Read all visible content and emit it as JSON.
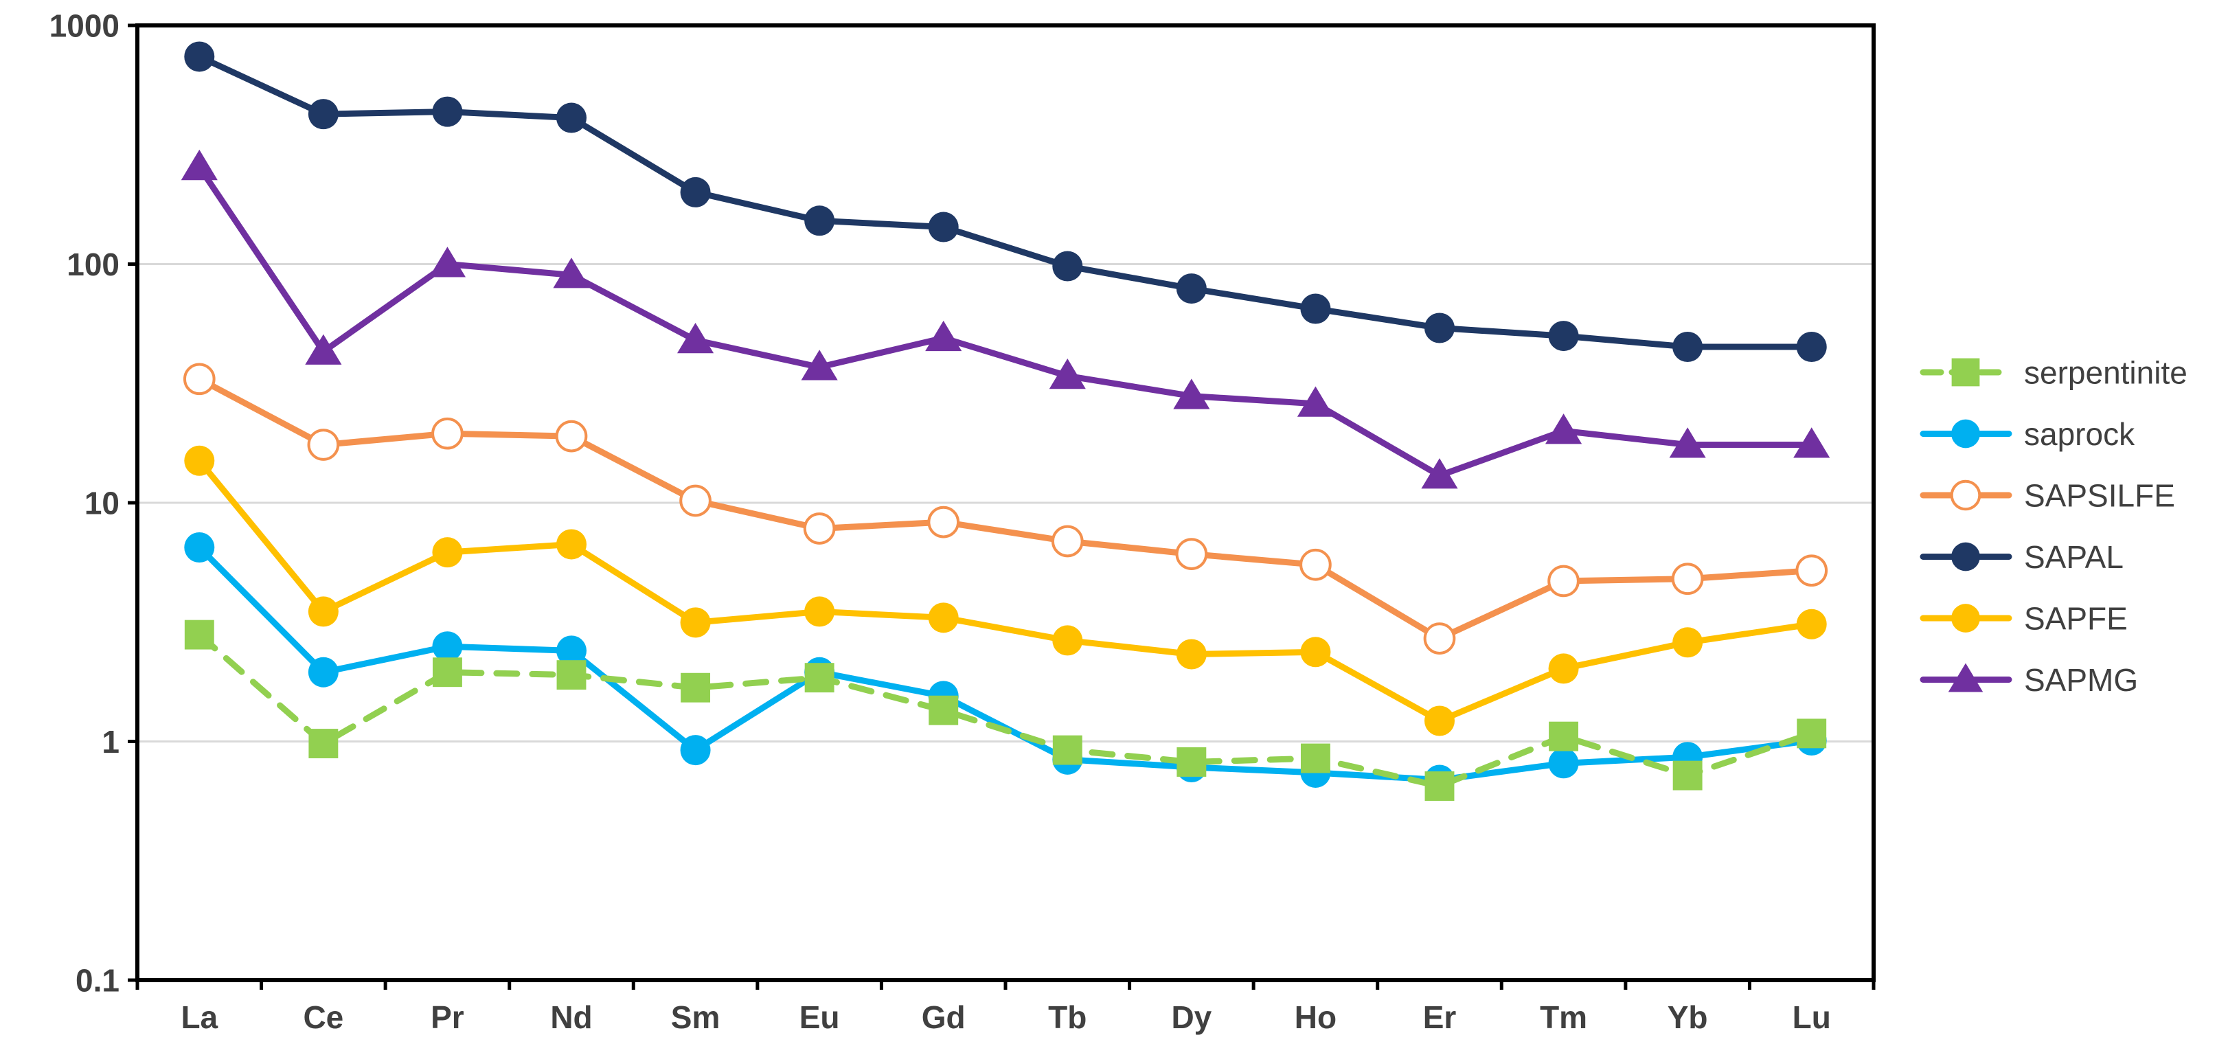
{
  "chart_data": {
    "type": "line",
    "title": "",
    "xlabel": "",
    "ylabel": "",
    "yscale": "log",
    "ylim": [
      0.1,
      1000
    ],
    "yticks": [
      0.1,
      1,
      10,
      100,
      1000
    ],
    "ytick_labels": [
      "0.1",
      "1",
      "10",
      "100",
      "1000"
    ],
    "grid": "horizontal",
    "legend_position": "right",
    "categories": [
      "La",
      "Ce",
      "Pr",
      "Nd",
      "Sm",
      "Eu",
      "Gd",
      "Tb",
      "Dy",
      "Ho",
      "Er",
      "Tm",
      "Yb",
      "Lu"
    ],
    "series": [
      {
        "name": "serpentinite",
        "color": "#92D050",
        "marker": "square",
        "line_style": "dashed",
        "values": [
          2.8,
          0.98,
          1.95,
          1.9,
          1.68,
          1.85,
          1.35,
          0.92,
          0.82,
          0.85,
          0.65,
          1.05,
          0.72,
          1.08
        ]
      },
      {
        "name": "saprock",
        "color": "#00B0F0",
        "marker": "circle",
        "line_style": "solid",
        "values": [
          6.5,
          1.95,
          2.5,
          2.4,
          0.92,
          1.95,
          1.55,
          0.84,
          0.78,
          0.74,
          0.69,
          0.81,
          0.86,
          1.01
        ]
      },
      {
        "name": "SAPSILFE",
        "color": "#F4914E",
        "marker": "open-circle",
        "line_style": "solid",
        "values": [
          33,
          17.5,
          19.5,
          19,
          10.2,
          7.8,
          8.3,
          6.9,
          6.1,
          5.5,
          2.7,
          4.7,
          4.8,
          5.2
        ]
      },
      {
        "name": "SAPAL",
        "color": "#1F3864",
        "marker": "circle",
        "line_style": "solid",
        "values": [
          740,
          425,
          435,
          410,
          200,
          152,
          143,
          98,
          79,
          65,
          54,
          50,
          45,
          45
        ]
      },
      {
        "name": "SAPFE",
        "color": "#FFC000",
        "marker": "circle",
        "line_style": "solid",
        "values": [
          15,
          3.5,
          6.2,
          6.7,
          3.15,
          3.5,
          3.3,
          2.65,
          2.32,
          2.37,
          1.22,
          2.02,
          2.6,
          3.1
        ]
      },
      {
        "name": "SAPMG",
        "color": "#7030A0",
        "marker": "triangle",
        "line_style": "solid",
        "values": [
          255,
          43,
          100,
          90,
          48,
          37,
          49,
          34,
          28,
          26,
          13,
          20,
          17.5,
          17.5
        ]
      }
    ]
  }
}
